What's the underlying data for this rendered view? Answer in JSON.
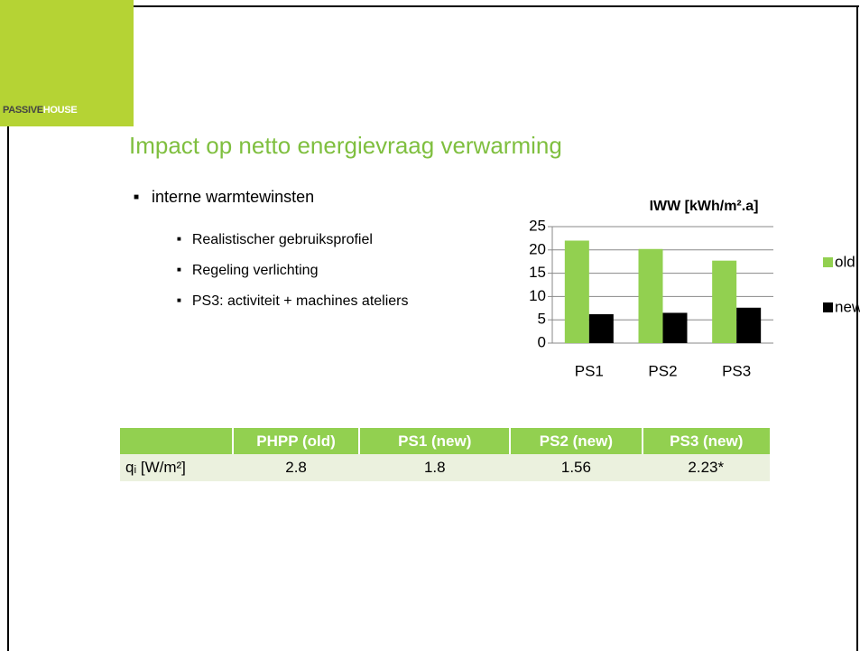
{
  "logo": {
    "first": "PASSIVE",
    "second": "HOUSE"
  },
  "title": "Impact op netto energievraag verwarming",
  "bullets": [
    {
      "text": "interne warmtewinsten",
      "children": [
        "Realistischer gebruiksprofiel",
        "Regeling verlichting",
        "PS3: activiteit + machines ateliers"
      ]
    }
  ],
  "chart": {
    "type": "bar",
    "title": "IWW [kWh/m².a]",
    "categories": [
      "PS1",
      "PS2",
      "PS3"
    ],
    "series": [
      {
        "name": "old",
        "color": "#92d050",
        "values": [
          22,
          20.2,
          17.7
        ]
      },
      {
        "name": "new",
        "color": "#000000",
        "values": [
          6.2,
          6.5,
          7.6
        ]
      }
    ],
    "ylim": [
      0,
      25
    ],
    "yticks": [
      0,
      5,
      10,
      15,
      20,
      25
    ],
    "grid": true,
    "legend": "right"
  },
  "table": {
    "header": [
      "PHPP (old)",
      "PS1 (new)",
      "PS2 (new)",
      "PS3 (new)"
    ],
    "rows": [
      [
        "qᵢ [W/m²]",
        "2.8",
        "1.8",
        "1.56",
        "2.23*"
      ]
    ]
  }
}
